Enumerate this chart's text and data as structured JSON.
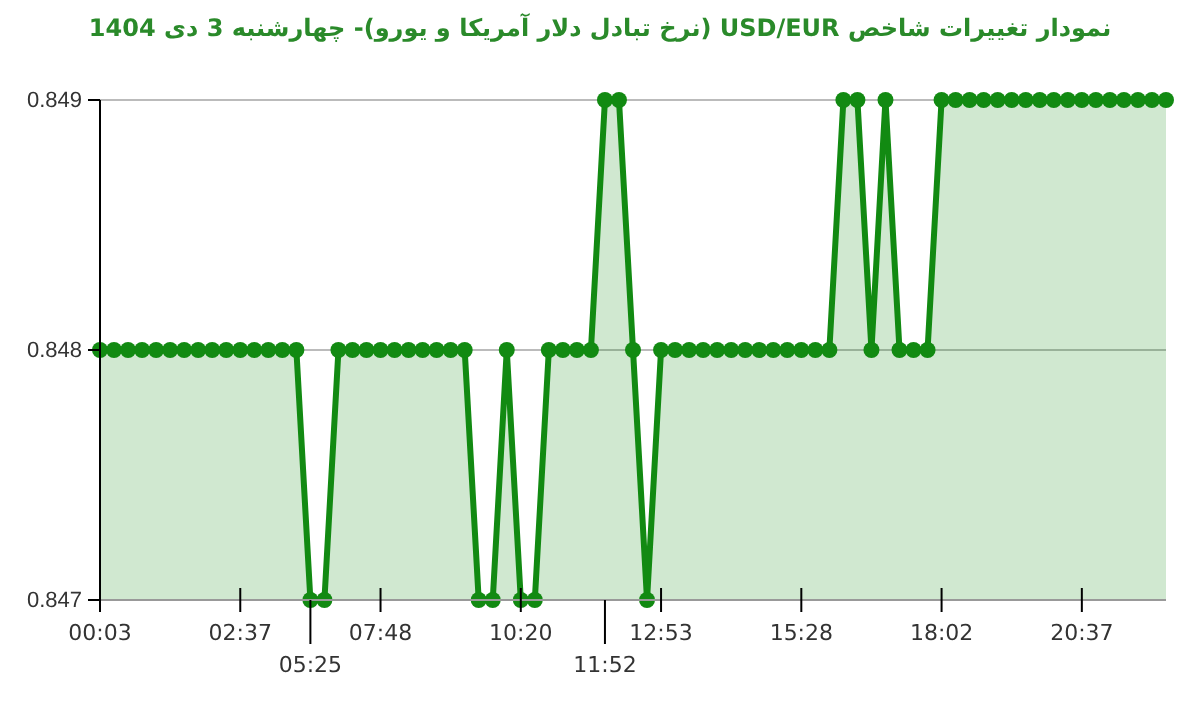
{
  "chart_data": {
    "type": "area",
    "title": "نمودار تغییرات شاخص USD/EUR (نرخ تبادل دلار آمریکا و یورو)- چهارشنبه  3 دی 1404",
    "categories": [
      "00:03",
      null,
      null,
      null,
      null,
      null,
      null,
      null,
      null,
      null,
      "02:37",
      null,
      null,
      null,
      null,
      "05:25",
      null,
      null,
      null,
      null,
      "07:48",
      null,
      null,
      null,
      null,
      null,
      null,
      null,
      null,
      null,
      "10:20",
      null,
      null,
      null,
      null,
      null,
      "11:52",
      null,
      null,
      null,
      "12:53",
      null,
      null,
      null,
      null,
      null,
      null,
      null,
      null,
      null,
      "15:28",
      null,
      null,
      null,
      null,
      null,
      null,
      null,
      null,
      null,
      "18:02",
      null,
      null,
      null,
      null,
      null,
      null,
      null,
      null,
      null,
      "20:37",
      null,
      null,
      null,
      null,
      null,
      null
    ],
    "series": [
      {
        "color": "#128a12",
        "values": [
          0.848,
          0.848,
          0.848,
          0.848,
          0.848,
          0.848,
          0.848,
          0.848,
          0.848,
          0.848,
          0.848,
          0.848,
          0.848,
          0.848,
          0.848,
          0.847,
          0.847,
          0.848,
          0.848,
          0.848,
          0.848,
          0.848,
          0.848,
          0.848,
          0.848,
          0.848,
          0.848,
          0.847,
          0.847,
          0.848,
          0.847,
          0.847,
          0.848,
          0.848,
          0.848,
          0.848,
          0.849,
          0.849,
          0.848,
          0.847,
          0.848,
          0.848,
          0.848,
          0.848,
          0.848,
          0.848,
          0.848,
          0.848,
          0.848,
          0.848,
          0.848,
          0.848,
          0.848,
          0.849,
          0.849,
          0.848,
          0.849,
          0.848,
          0.848,
          0.848,
          0.849,
          0.849,
          0.849,
          0.849,
          0.849,
          0.849,
          0.849,
          0.849,
          0.849,
          0.849,
          0.849,
          0.849,
          0.849,
          0.849,
          0.849,
          0.849,
          0.849
        ]
      }
    ],
    "ylim": [
      0.847,
      0.849
    ],
    "yticks": [
      0.847,
      0.848,
      0.849
    ],
    "grid": "y",
    "marker": "circle",
    "line_style": "solid"
  }
}
